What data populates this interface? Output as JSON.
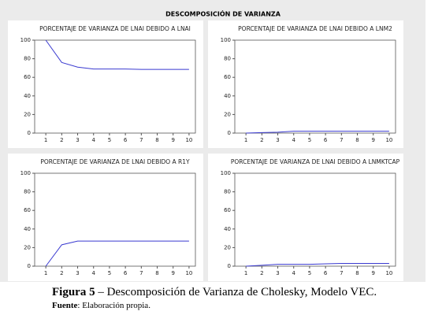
{
  "title": "DESCOMPOSICIÓN DE VARIANZA",
  "caption_label": "Figura 5",
  "caption_text": "– Descomposición de Varianza de Cholesky, Modelo VEC.",
  "source_label": "Fuente",
  "source_text": ": Elaboración propia.",
  "chart_data": [
    {
      "type": "line",
      "title": "PORCENTAJE DE VARIANZA DE LNAI DEBIDO A LNAI",
      "x": [
        1,
        2,
        3,
        4,
        5,
        6,
        7,
        8,
        9,
        10
      ],
      "series": [
        {
          "color": "#3a3ad0",
          "values": [
            100,
            76,
            71,
            69,
            69,
            69,
            68.5,
            68.5,
            68.5,
            68.5
          ]
        }
      ],
      "xlim": [
        0.3,
        10.4
      ],
      "xticks": [
        1,
        2,
        3,
        4,
        5,
        6,
        7,
        8,
        9,
        10
      ],
      "ylim": [
        0,
        100
      ],
      "yticks": [
        0,
        20,
        40,
        60,
        80,
        100
      ]
    },
    {
      "type": "line",
      "title": "PORCENTAJE DE VARIANZA DE LNAI DEBIDO A LNM2",
      "x": [
        1,
        2,
        3,
        4,
        5,
        6,
        7,
        8,
        9,
        10
      ],
      "series": [
        {
          "color": "#3a3ad0",
          "values": [
            0,
            0.5,
            1,
            2,
            2,
            2,
            2,
            2,
            2,
            2
          ]
        }
      ],
      "xlim": [
        0.3,
        10.4
      ],
      "xticks": [
        1,
        2,
        3,
        4,
        5,
        6,
        7,
        8,
        9,
        10
      ],
      "ylim": [
        0,
        100
      ],
      "yticks": [
        0,
        20,
        40,
        60,
        80,
        100
      ]
    },
    {
      "type": "line",
      "title": "PORCENTAJE DE VARIANZA DE LNAI DEBIDO A R1Y",
      "x": [
        1,
        2,
        3,
        4,
        5,
        6,
        7,
        8,
        9,
        10
      ],
      "series": [
        {
          "color": "#3a3ad0",
          "values": [
            0,
            23,
            27,
            27,
            27,
            27,
            27,
            27,
            27,
            27
          ]
        }
      ],
      "xlim": [
        0.3,
        10.4
      ],
      "xticks": [
        1,
        2,
        3,
        4,
        5,
        6,
        7,
        8,
        9,
        10
      ],
      "ylim": [
        0,
        100
      ],
      "yticks": [
        0,
        20,
        40,
        60,
        80,
        100
      ]
    },
    {
      "type": "line",
      "title": "PORCENTAJE DE VARIANZA DE LNAI DEBIDO A LNMKTCAP",
      "x": [
        1,
        2,
        3,
        4,
        5,
        6,
        7,
        8,
        9,
        10
      ],
      "series": [
        {
          "color": "#3a3ad0",
          "values": [
            0,
            1,
            2,
            2,
            2,
            2.5,
            3,
            3,
            3,
            3
          ]
        }
      ],
      "xlim": [
        0.3,
        10.4
      ],
      "xticks": [
        1,
        2,
        3,
        4,
        5,
        6,
        7,
        8,
        9,
        10
      ],
      "ylim": [
        0,
        100
      ],
      "yticks": [
        0,
        20,
        40,
        60,
        80,
        100
      ]
    }
  ]
}
